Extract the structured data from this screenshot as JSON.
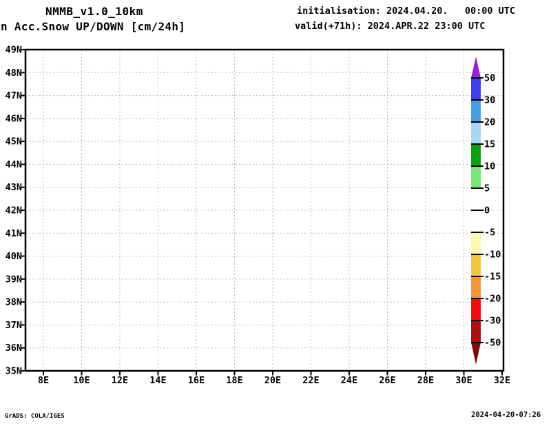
{
  "header": {
    "model_title": "NMMB_v1.0_10km",
    "product_title": "n Acc.Snow UP/DOWN [cm/24h]",
    "initialisation": "initialisation: 2024.04.20.   00:00 UTC",
    "valid": "valid(+71h): 2024.APR.22 23:00 UTC"
  },
  "map": {
    "lat_ticks": [
      "49N",
      "48N",
      "47N",
      "46N",
      "45N",
      "44N",
      "43N",
      "42N",
      "41N",
      "40N",
      "39N",
      "38N",
      "37N",
      "36N",
      "35N"
    ],
    "lon_ticks": [
      "8E",
      "10E",
      "12E",
      "14E",
      "16E",
      "18E",
      "20E",
      "22E",
      "24E",
      "26E",
      "28E",
      "30E",
      "32E"
    ],
    "grid_color": "#b9b9b9",
    "lat_range": [
      35,
      49
    ],
    "lon_range": [
      8,
      32
    ]
  },
  "colorbar": {
    "labels": [
      "50",
      "30",
      "20",
      "15",
      "10",
      "5",
      "0",
      "-5",
      "-10",
      "-15",
      "-20",
      "-30",
      "-50"
    ],
    "segment_colors": [
      "#4040e8",
      "#4a9ee0",
      "#a8d8f4",
      "#0aa014",
      "#78e678",
      "#ffffff",
      "#ffffff",
      "#fbf8b4",
      "#f2c83e",
      "#f59638",
      "#ee0c0c",
      "#aa1010"
    ],
    "arrow_top_color": "#9a20d0",
    "arrow_bottom_color": "#7e0e0e",
    "units": "cm/24h"
  },
  "footer": {
    "left": "GrADS: COLA/IGES",
    "right": "2024-04-20-07:26"
  }
}
